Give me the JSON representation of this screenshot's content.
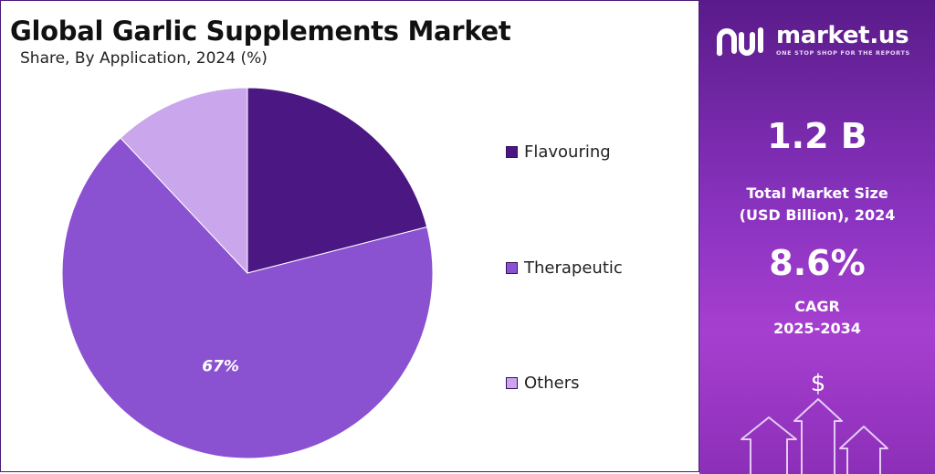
{
  "title": "Global Garlic Supplements Market",
  "subtitle": "Share, By Application, 2024 (%)",
  "chart_data": {
    "type": "pie",
    "title": "Global Garlic Supplements Market",
    "subtitle": "Share, By Application, 2024 (%)",
    "categories": [
      "Flavouring",
      "Therapeutic",
      "Others"
    ],
    "values": [
      21,
      67,
      12
    ],
    "data_labels": [
      "",
      "67%",
      ""
    ],
    "colors": [
      "#4b1782",
      "#8a52d0",
      "#caa6ec"
    ],
    "legend_position": "right"
  },
  "sidebar": {
    "logo_text": "market.us",
    "tagline": "ONE STOP SHOP FOR THE REPORTS",
    "market_size_value": "1.2 B",
    "market_size_label_1": "Total Market Size",
    "market_size_label_2": "(USD Billion), 2024",
    "cagr_value": "8.6%",
    "cagr_label_1": "CAGR",
    "cagr_label_2": "2025-2034",
    "currency_symbol": "$"
  }
}
